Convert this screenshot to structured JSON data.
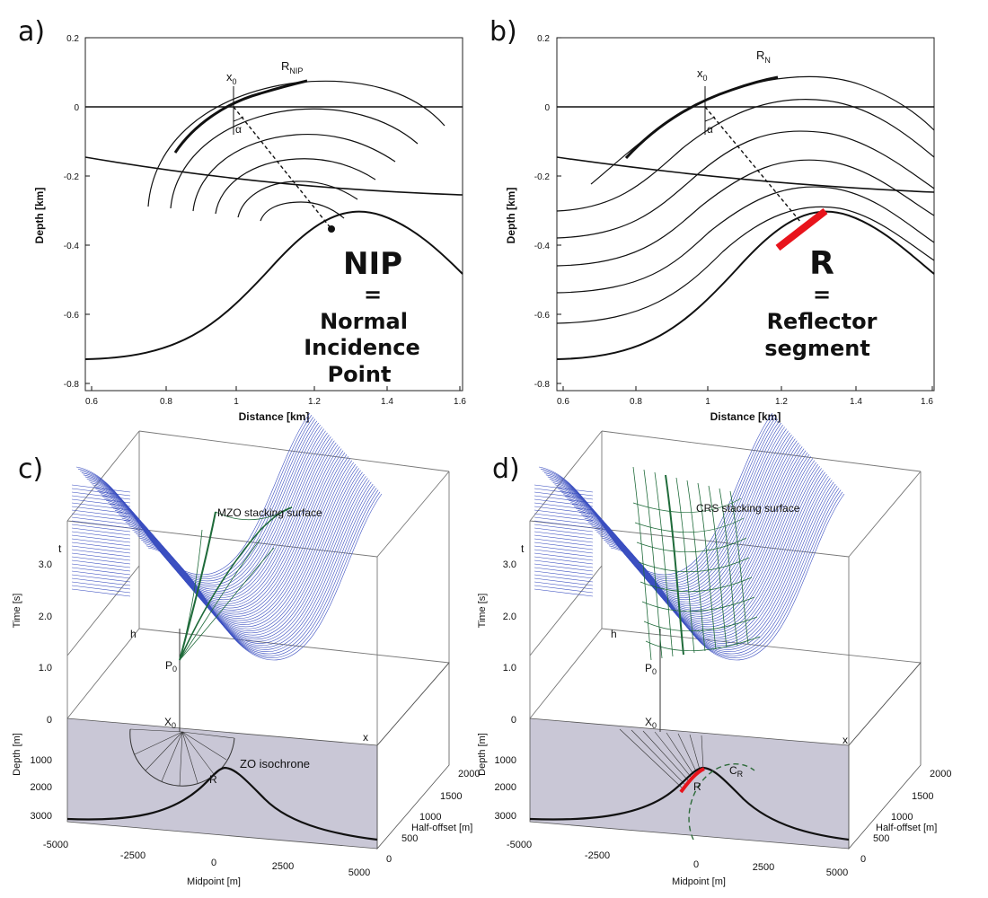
{
  "panels": [
    {
      "label": "a)"
    },
    {
      "label": "b)"
    },
    {
      "label": "c)"
    },
    {
      "label": "d)"
    }
  ],
  "a": {
    "wave_label": "R",
    "wave_label_sub": "NIP",
    "x0_label": "x",
    "x0_sub": "0",
    "angle_label": "α",
    "ylabel": "Depth [km]",
    "xlabel": "Distance [km]",
    "yticks": [
      "0.2",
      "0",
      "-0.2",
      "-0.4",
      "-0.6",
      "-0.8"
    ],
    "xticks": [
      "0.6",
      "0.8",
      "1",
      "1.2",
      "1.4",
      "1.6"
    ],
    "big_title": "NIP",
    "big_eq": "=",
    "big_line1": "Normal",
    "big_line2": "Incidence",
    "big_line3": "Point"
  },
  "b": {
    "wave_label": "R",
    "wave_label_sub": "N",
    "x0_label": "x",
    "x0_sub": "0",
    "angle_label": "α",
    "ylabel": "Depth [km]",
    "xlabel": "Distance [km]",
    "yticks": [
      "0.2",
      "0",
      "-0.2",
      "-0.4",
      "-0.6",
      "-0.8"
    ],
    "xticks": [
      "0.6",
      "0.8",
      "1",
      "1.2",
      "1.4",
      "1.6"
    ],
    "big_title": "R",
    "big_eq": "=",
    "big_line1": "Reflector",
    "big_line2": "segment",
    "reflector_color": "#e8141c"
  },
  "c": {
    "surface_label": "MZO stacking surface",
    "isochrone_label": "ZO isochrone",
    "t_axis": "t",
    "h_axis": "h",
    "x_axis": "x",
    "p0_label": "P",
    "p0_sub": "0",
    "x0_label": "X",
    "x0_sub": "0",
    "r_label": "R",
    "time_label": "Time [s]",
    "time_ticks": [
      "3.0",
      "2.0",
      "1.0",
      "0"
    ],
    "depth_label": "Depth [m]",
    "depth_ticks": [
      "1000",
      "2000",
      "3000"
    ],
    "midpoint_label": "Midpoint [m]",
    "midpoint_ticks": [
      "-5000",
      "-2500",
      "0",
      "2500",
      "5000"
    ],
    "halfoffset_label": "Half-offset [m]",
    "halfoffset_ticks": [
      "2000",
      "1500",
      "1000",
      "500",
      "0"
    ],
    "line_color": "#3b4fc0",
    "surface_color": "#1f6b3a"
  },
  "d": {
    "surface_label": "CRS stacking surface",
    "t_axis": "t",
    "h_axis": "h",
    "x_axis": "x",
    "p0_label": "P",
    "p0_sub": "0",
    "x0_label": "X",
    "x0_sub": "0",
    "r_label": "R",
    "cr_label": "C",
    "cr_sub": "R",
    "time_label": "Time [s]",
    "time_ticks": [
      "3.0",
      "2.0",
      "1.0",
      "0"
    ],
    "depth_label": "Depth [m]",
    "depth_ticks": [
      "1000",
      "2000",
      "3000"
    ],
    "midpoint_label": "Midpoint [m]",
    "midpoint_ticks": [
      "-5000",
      "-2500",
      "0",
      "2500",
      "5000"
    ],
    "halfoffset_label": "Half-offset [m]",
    "halfoffset_ticks": [
      "2000",
      "1500",
      "1000",
      "500",
      "0"
    ],
    "line_color": "#3b4fc0",
    "surface_color": "#1f6b3a",
    "reflector_color": "#e8141c"
  }
}
